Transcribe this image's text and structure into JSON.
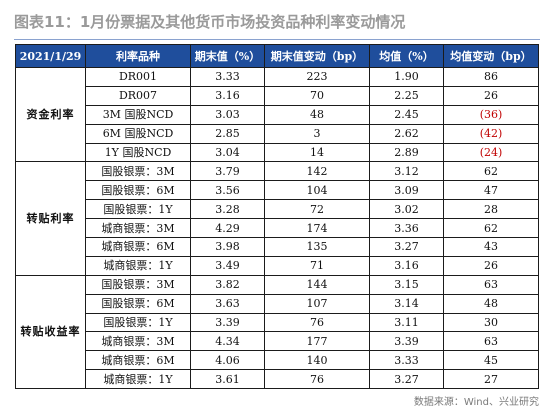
{
  "title": "图表11：1月份票据及其他货币市场投资品种利率变动情况",
  "header": {
    "date": "2021/1/29",
    "type": "利率品种",
    "end_value": "期末值（%）",
    "end_change": "期末值变动（bp）",
    "mean": "均值（%）",
    "mean_change": "均值变动（bp）"
  },
  "groups": [
    {
      "label": "资金利率",
      "rows": [
        {
          "name": "DR001",
          "end": "3.33",
          "end_chg": "223",
          "mean": "1.90",
          "mean_chg": "86",
          "neg": false
        },
        {
          "name": "DR007",
          "end": "3.16",
          "end_chg": "70",
          "mean": "2.25",
          "mean_chg": "26",
          "neg": false
        },
        {
          "name": "3M  国股NCD",
          "end": "3.03",
          "end_chg": "48",
          "mean": "2.45",
          "mean_chg": "(36)",
          "neg": true
        },
        {
          "name": "6M  国股NCD",
          "end": "2.85",
          "end_chg": "3",
          "mean": "2.62",
          "mean_chg": "(42)",
          "neg": true
        },
        {
          "name": "1Y  国股NCD",
          "end": "3.04",
          "end_chg": "14",
          "mean": "2.89",
          "mean_chg": "(24)",
          "neg": true
        }
      ]
    },
    {
      "label": "转贴利率",
      "rows": [
        {
          "name": "国股银票：3M",
          "end": "3.79",
          "end_chg": "142",
          "mean": "3.12",
          "mean_chg": "62",
          "neg": false
        },
        {
          "name": "国股银票：6M",
          "end": "3.56",
          "end_chg": "104",
          "mean": "3.09",
          "mean_chg": "47",
          "neg": false
        },
        {
          "name": "国股银票：1Y",
          "end": "3.28",
          "end_chg": "72",
          "mean": "3.02",
          "mean_chg": "28",
          "neg": false
        },
        {
          "name": "城商银票：3M",
          "end": "4.29",
          "end_chg": "174",
          "mean": "3.36",
          "mean_chg": "62",
          "neg": false
        },
        {
          "name": "城商银票：6M",
          "end": "3.98",
          "end_chg": "135",
          "mean": "3.27",
          "mean_chg": "43",
          "neg": false
        },
        {
          "name": "城商银票：1Y",
          "end": "3.49",
          "end_chg": "71",
          "mean": "3.16",
          "mean_chg": "26",
          "neg": false
        }
      ]
    },
    {
      "label": "转贴收益率",
      "rows": [
        {
          "name": "国股银票：3M",
          "end": "3.82",
          "end_chg": "144",
          "mean": "3.15",
          "mean_chg": "63",
          "neg": false
        },
        {
          "name": "国股银票：6M",
          "end": "3.63",
          "end_chg": "107",
          "mean": "3.14",
          "mean_chg": "48",
          "neg": false
        },
        {
          "name": "国股银票：1Y",
          "end": "3.39",
          "end_chg": "76",
          "mean": "3.11",
          "mean_chg": "30",
          "neg": false
        },
        {
          "name": "城商银票：3M",
          "end": "4.34",
          "end_chg": "177",
          "mean": "3.39",
          "mean_chg": "63",
          "neg": false
        },
        {
          "name": "城商银票：6M",
          "end": "4.06",
          "end_chg": "140",
          "mean": "3.33",
          "mean_chg": "45",
          "neg": false
        },
        {
          "name": "城商银票：1Y",
          "end": "3.61",
          "end_chg": "76",
          "mean": "3.27",
          "mean_chg": "27",
          "neg": false
        }
      ]
    }
  ],
  "source": "数据来源：Wind、兴业研究",
  "colors": {
    "header_bg": "#1f4e9c",
    "negative": "#c00000",
    "title": "#9a9a9a"
  }
}
